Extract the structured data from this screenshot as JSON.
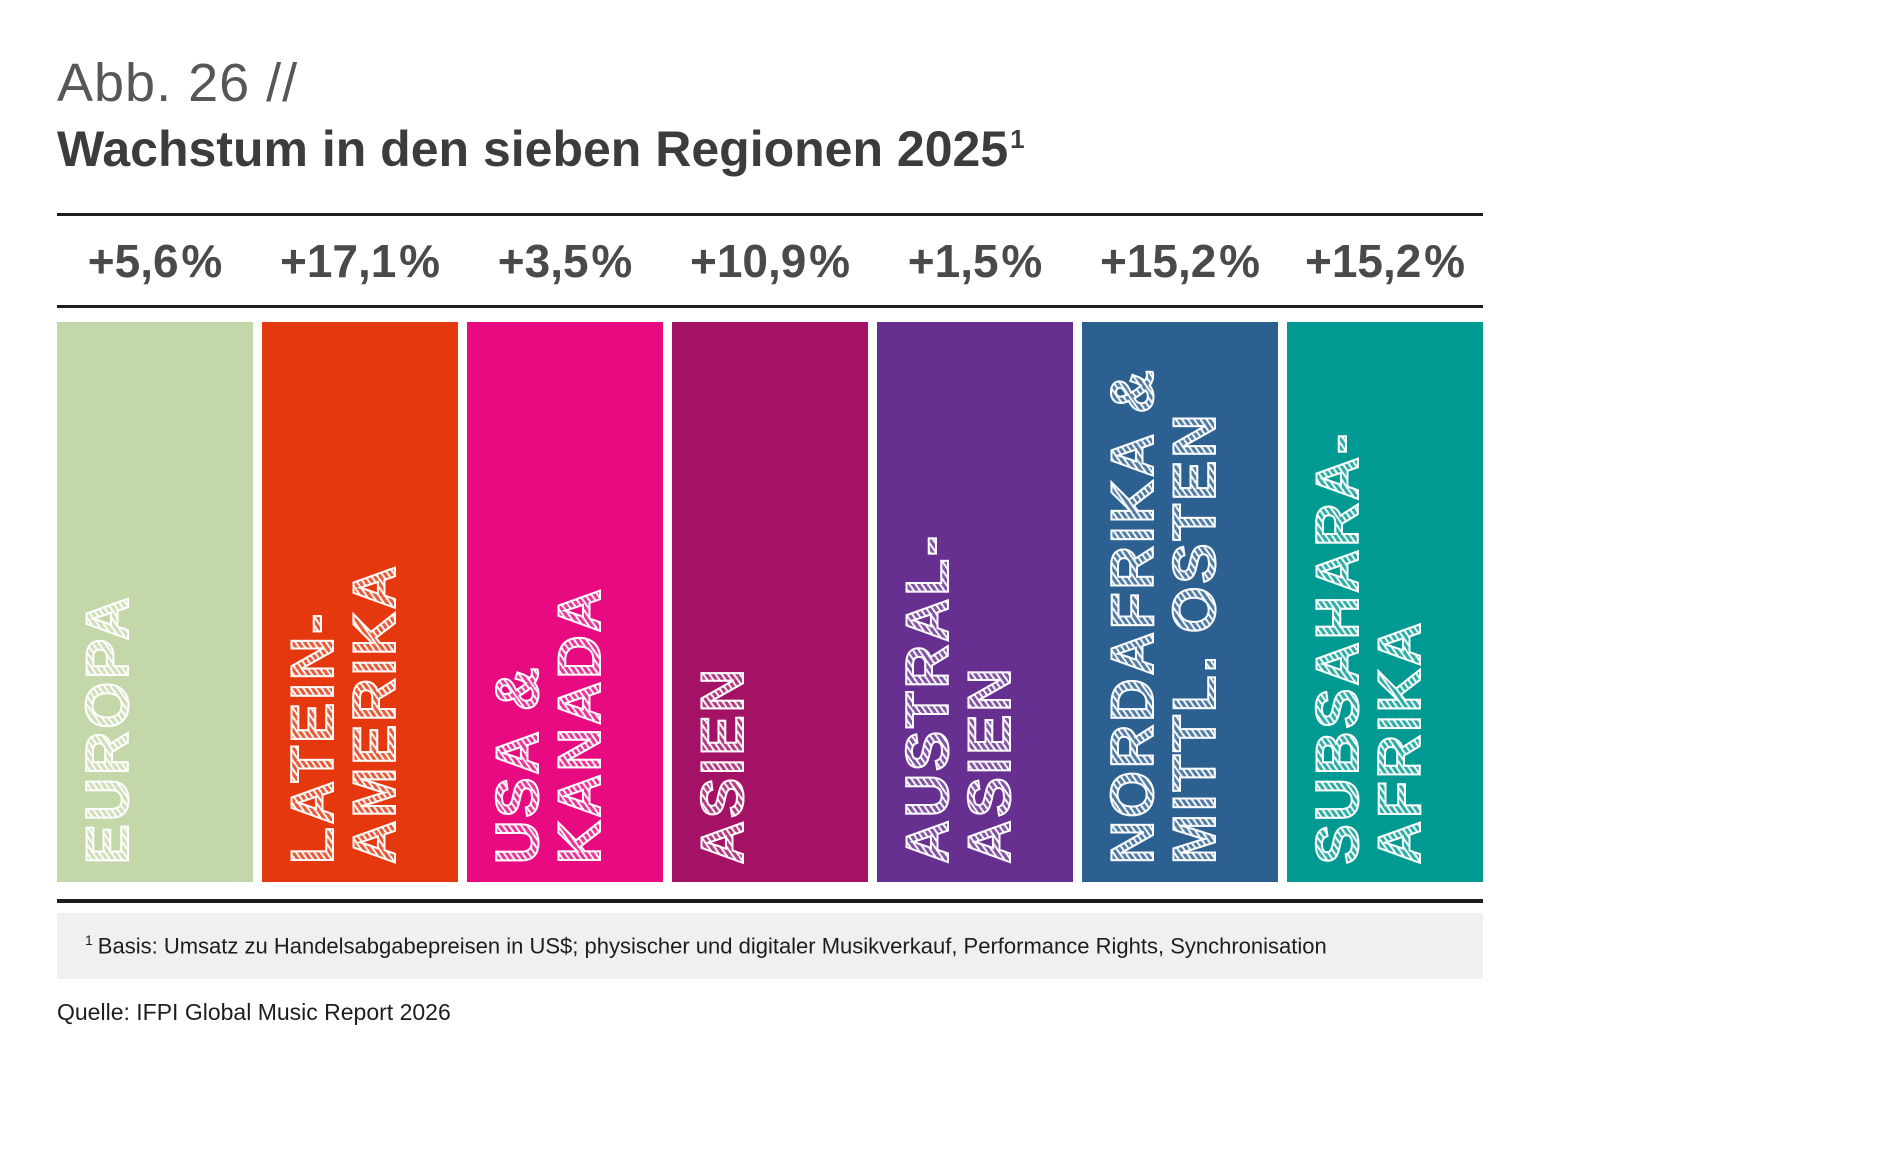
{
  "figure": {
    "label": "Abb. 26 //",
    "title": "Wachstum in den sieben Regionen 2025",
    "title_superscript": "1"
  },
  "regions": [
    {
      "growth": "+5,6 %",
      "line1": "EUROPA",
      "line2": "",
      "color": "#c3d7a9"
    },
    {
      "growth": "+17,1 %",
      "line1": "LATEIN-",
      "line2": "AMERIKA",
      "color": "#e6380f"
    },
    {
      "growth": "+3,5 %",
      "line1": "USA &",
      "line2": "KANADA",
      "color": "#e80a80"
    },
    {
      "growth": "+10,9 %",
      "line1": "ASIEN",
      "line2": "",
      "color": "#a31265"
    },
    {
      "growth": "+1,5 %",
      "line1": "AUSTRAL-",
      "line2": "ASIEN",
      "color": "#672f90"
    },
    {
      "growth": "+15,2 %",
      "line1": "NORDAFRIKA &",
      "line2": "MITTL. OSTEN",
      "color": "#2c6090"
    },
    {
      "growth": "+15,2 %",
      "line1": "SUBSAHARA-",
      "line2": "AFRIKA",
      "color": "#009a93"
    }
  ],
  "footnote": {
    "superscript": "1",
    "text": "Basis: Umsatz zu Handelsabgabepreisen in US$; physischer und digitaler Musikverkauf, Performance Rights, Synchronisation"
  },
  "source": "Quelle: IFPI Global Music Report 2026",
  "chart_data": {
    "type": "bar",
    "title": "Wachstum in den sieben Regionen 2025",
    "categories": [
      "EUROPA",
      "LATEIN-AMERIKA",
      "USA & KANADA",
      "ASIEN",
      "AUSTRAL-ASIEN",
      "NORDAFRIKA & MITTL. OSTEN",
      "SUBSAHARA-AFRIKA"
    ],
    "values": [
      5.6,
      17.1,
      3.5,
      10.9,
      1.5,
      15.2,
      15.2
    ],
    "value_labels": [
      "+5,6 %",
      "+17,1 %",
      "+3,5 %",
      "+10,9 %",
      "+1,5 %",
      "+15,2 %",
      "+15,2 %"
    ],
    "unit": "%",
    "xlabel": "",
    "ylabel": "",
    "bar_colors": [
      "#c3d7a9",
      "#e6380f",
      "#e80a80",
      "#a31265",
      "#672f90",
      "#2c6090",
      "#009a93"
    ],
    "legend": "none",
    "grid": false,
    "layout": "seven equal-height decorative columns; growth value labels centered above each column between horizontal rules; region names written bottom-to-top inside columns in white sketch-hatched capitals"
  }
}
